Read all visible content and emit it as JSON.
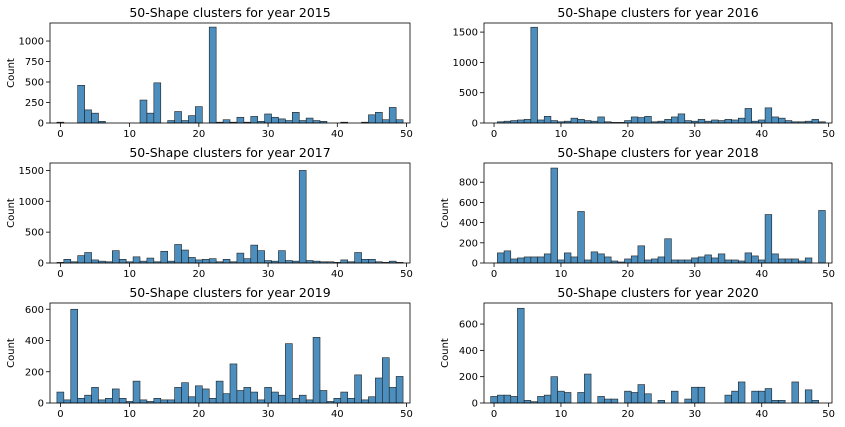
{
  "chart_data": [
    {
      "type": "bar",
      "title": "50-Shape clusters for year 2015",
      "xlabel": "",
      "ylabel": "Count",
      "xlim": [
        -1.5,
        50.5
      ],
      "ylim": [
        0,
        1220
      ],
      "xticks": [
        0,
        10,
        20,
        30,
        40,
        50
      ],
      "yticks": [
        0,
        250,
        500,
        750,
        1000
      ],
      "bar_color": "#4c8fbf",
      "x": [
        0,
        1,
        2,
        3,
        4,
        5,
        6,
        7,
        8,
        9,
        10,
        11,
        12,
        13,
        14,
        15,
        16,
        17,
        18,
        19,
        20,
        21,
        22,
        23,
        24,
        25,
        26,
        27,
        28,
        29,
        30,
        31,
        32,
        33,
        34,
        35,
        36,
        37,
        38,
        39,
        40,
        41,
        42,
        43,
        44,
        45,
        46,
        47,
        48,
        49
      ],
      "values": [
        10,
        0,
        0,
        460,
        160,
        120,
        20,
        0,
        0,
        0,
        0,
        0,
        280,
        120,
        490,
        0,
        30,
        140,
        30,
        90,
        200,
        0,
        1170,
        10,
        40,
        10,
        70,
        10,
        80,
        20,
        110,
        70,
        50,
        30,
        130,
        30,
        60,
        30,
        20,
        0,
        0,
        10,
        0,
        0,
        10,
        100,
        130,
        40,
        190,
        40
      ]
    },
    {
      "type": "bar",
      "title": "50-Shape clusters for year 2016",
      "xlabel": "",
      "ylabel": "",
      "xlim": [
        -1.5,
        50.5
      ],
      "ylim": [
        0,
        1650
      ],
      "xticks": [
        0,
        10,
        20,
        30,
        40,
        50
      ],
      "yticks": [
        0,
        500,
        1000,
        1500
      ],
      "bar_color": "#4c8fbf",
      "x": [
        0,
        1,
        2,
        3,
        4,
        5,
        6,
        7,
        8,
        9,
        10,
        11,
        12,
        13,
        14,
        15,
        16,
        17,
        18,
        19,
        20,
        21,
        22,
        23,
        24,
        25,
        26,
        27,
        28,
        29,
        30,
        31,
        32,
        33,
        34,
        35,
        36,
        37,
        38,
        39,
        40,
        41,
        42,
        43,
        44,
        45,
        46,
        47,
        48,
        49
      ],
      "values": [
        0,
        20,
        30,
        40,
        50,
        60,
        1580,
        50,
        110,
        40,
        20,
        30,
        80,
        60,
        40,
        30,
        100,
        20,
        10,
        10,
        40,
        100,
        90,
        110,
        20,
        30,
        60,
        100,
        150,
        40,
        30,
        60,
        30,
        50,
        40,
        60,
        50,
        80,
        240,
        30,
        50,
        250,
        100,
        80,
        40,
        20,
        20,
        30,
        60,
        20
      ],
      "ylabel_note": ""
    },
    {
      "type": "bar",
      "title": "50-Shape clusters for year 2017",
      "xlabel": "",
      "ylabel": "Count",
      "xlim": [
        -1.5,
        50.5
      ],
      "ylim": [
        0,
        1620
      ],
      "xticks": [
        0,
        10,
        20,
        30,
        40,
        50
      ],
      "yticks": [
        0,
        500,
        1000,
        1500
      ],
      "bar_color": "#4c8fbf",
      "x": [
        0,
        1,
        2,
        3,
        4,
        5,
        6,
        7,
        8,
        9,
        10,
        11,
        12,
        13,
        14,
        15,
        16,
        17,
        18,
        19,
        20,
        21,
        22,
        23,
        24,
        25,
        26,
        27,
        28,
        29,
        30,
        31,
        32,
        33,
        34,
        35,
        36,
        37,
        38,
        39,
        40,
        41,
        42,
        43,
        44,
        45,
        46,
        47,
        48,
        49
      ],
      "values": [
        10,
        60,
        20,
        120,
        170,
        50,
        30,
        20,
        200,
        60,
        20,
        100,
        30,
        80,
        20,
        190,
        30,
        300,
        210,
        90,
        50,
        60,
        70,
        20,
        60,
        20,
        160,
        70,
        290,
        200,
        40,
        30,
        200,
        40,
        30,
        1500,
        40,
        30,
        20,
        20,
        10,
        50,
        20,
        170,
        60,
        60,
        20,
        10,
        30,
        10
      ]
    },
    {
      "type": "bar",
      "title": "50-Shape clusters for year 2018",
      "xlabel": "",
      "ylabel": "Count",
      "xlim": [
        -1.5,
        50.5
      ],
      "ylim": [
        0,
        990
      ],
      "xticks": [
        0,
        10,
        20,
        30,
        40,
        50
      ],
      "yticks": [
        0,
        200,
        400,
        600,
        800
      ],
      "bar_color": "#4c8fbf",
      "x": [
        0,
        1,
        2,
        3,
        4,
        5,
        6,
        7,
        8,
        9,
        10,
        11,
        12,
        13,
        14,
        15,
        16,
        17,
        18,
        19,
        20,
        21,
        22,
        23,
        24,
        25,
        26,
        27,
        28,
        29,
        30,
        31,
        32,
        33,
        34,
        35,
        36,
        37,
        38,
        39,
        40,
        41,
        42,
        43,
        44,
        45,
        46,
        47,
        48,
        49
      ],
      "values": [
        0,
        100,
        120,
        40,
        50,
        60,
        60,
        60,
        90,
        940,
        30,
        100,
        60,
        510,
        30,
        110,
        90,
        60,
        20,
        10,
        40,
        70,
        170,
        30,
        40,
        60,
        240,
        30,
        30,
        30,
        50,
        60,
        80,
        50,
        90,
        30,
        30,
        20,
        100,
        70,
        30,
        480,
        90,
        40,
        40,
        40,
        20,
        50,
        0,
        520
      ]
    },
    {
      "type": "bar",
      "title": "50-Shape clusters for year 2019",
      "xlabel": "",
      "ylabel": "Count",
      "xlim": [
        -1.5,
        50.5
      ],
      "ylim": [
        0,
        640
      ],
      "xticks": [
        0,
        10,
        20,
        30,
        40,
        50
      ],
      "yticks": [
        0,
        200,
        400,
        600
      ],
      "bar_color": "#4c8fbf",
      "x": [
        0,
        1,
        2,
        3,
        4,
        5,
        6,
        7,
        8,
        9,
        10,
        11,
        12,
        13,
        14,
        15,
        16,
        17,
        18,
        19,
        20,
        21,
        22,
        23,
        24,
        25,
        26,
        27,
        28,
        29,
        30,
        31,
        32,
        33,
        34,
        35,
        36,
        37,
        38,
        39,
        40,
        41,
        42,
        43,
        44,
        45,
        46,
        47,
        48,
        49
      ],
      "values": [
        70,
        20,
        600,
        30,
        50,
        100,
        20,
        30,
        90,
        30,
        10,
        140,
        20,
        10,
        30,
        20,
        20,
        100,
        130,
        40,
        110,
        90,
        30,
        140,
        60,
        250,
        80,
        100,
        70,
        20,
        100,
        70,
        50,
        380,
        30,
        50,
        20,
        420,
        80,
        10,
        30,
        70,
        30,
        180,
        20,
        40,
        160,
        290,
        100,
        170
      ]
    },
    {
      "type": "bar",
      "title": "50-Shape clusters for year 2020",
      "xlabel": "",
      "ylabel": "Count",
      "xlim": [
        -1.5,
        50.5
      ],
      "ylim": [
        0,
        760
      ],
      "xticks": [
        0,
        10,
        20,
        30,
        40,
        50
      ],
      "yticks": [
        0,
        200,
        400,
        600
      ],
      "bar_color": "#4c8fbf",
      "x": [
        0,
        1,
        2,
        3,
        4,
        5,
        6,
        7,
        8,
        9,
        10,
        11,
        12,
        13,
        14,
        15,
        16,
        17,
        18,
        19,
        20,
        21,
        22,
        23,
        24,
        25,
        26,
        27,
        28,
        29,
        30,
        31,
        32,
        33,
        34,
        35,
        36,
        37,
        38,
        39,
        40,
        41,
        42,
        43,
        44,
        45,
        46,
        47,
        48,
        49
      ],
      "values": [
        50,
        60,
        60,
        50,
        720,
        20,
        10,
        50,
        60,
        200,
        90,
        80,
        0,
        80,
        220,
        0,
        50,
        30,
        30,
        0,
        90,
        80,
        140,
        70,
        0,
        20,
        0,
        90,
        0,
        30,
        120,
        120,
        0,
        0,
        0,
        60,
        90,
        160,
        0,
        90,
        90,
        110,
        20,
        20,
        0,
        160,
        0,
        100,
        20,
        0
      ]
    }
  ]
}
